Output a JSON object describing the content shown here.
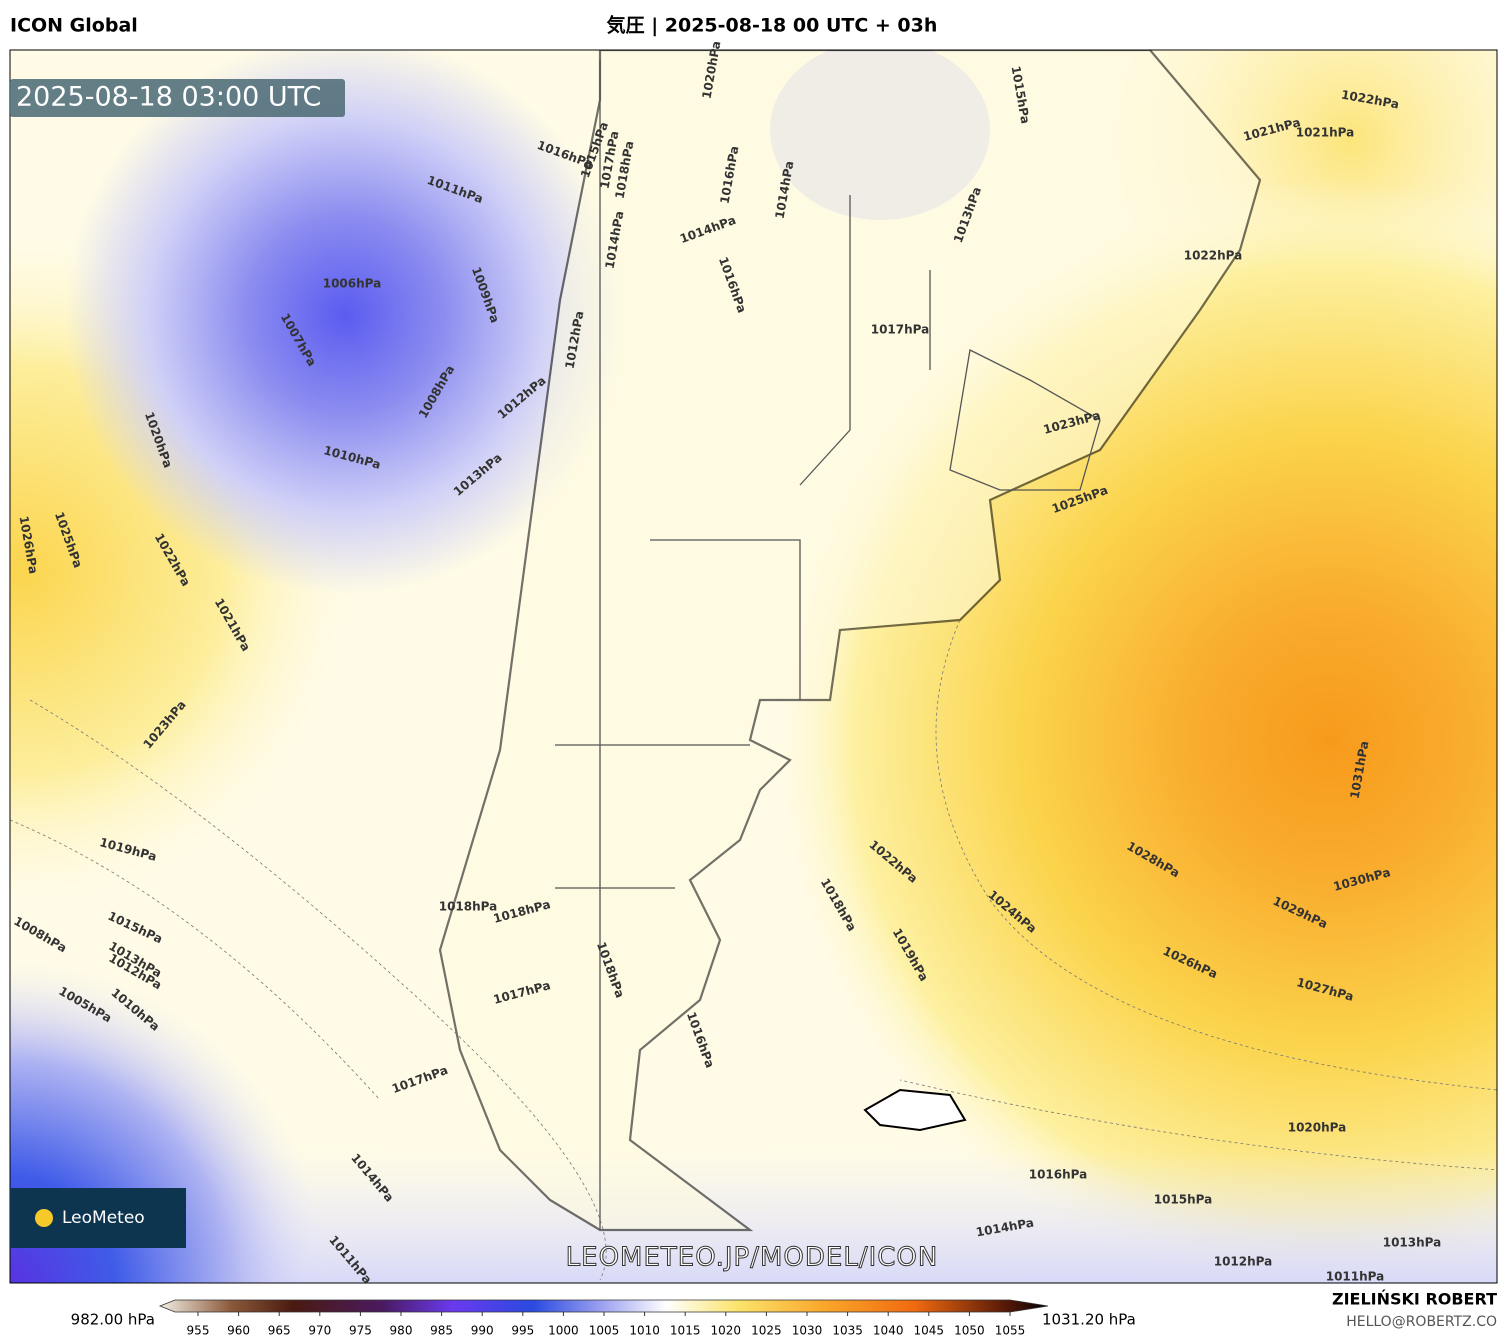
{
  "header": {
    "model": "ICON Global",
    "title": "気圧 | 2025-08-18 00 UTC + 03h"
  },
  "timestamp": "2025-08-18 03:00 UTC",
  "isobar_labels": [
    "1011hPa",
    "1006hPa",
    "1009hPa",
    "1007hPa",
    "1008hPa",
    "1012hPa",
    "1010hPa",
    "1013hPa",
    "1016hPa",
    "1015hPa",
    "1014hPa",
    "1012hPa",
    "1020hPa",
    "1025hPa",
    "1026hPa",
    "1022hPa",
    "1021hPa",
    "1023hPa",
    "1019hPa",
    "1015hPa",
    "1008hPa",
    "1013hPa",
    "1012hPa",
    "1005hPa",
    "1010hPa",
    "1017hPa",
    "1018hPa",
    "1016hPa",
    "1014hPa",
    "1014hPa",
    "1016hPa",
    "1017hPa",
    "1013hPa",
    "1015hPa",
    "1020hPa",
    "1022hPa",
    "1021hPa",
    "1021hPa",
    "1022hPa",
    "1023hPa",
    "1025hPa",
    "1031hPa",
    "1028hPa",
    "1030hPa",
    "1029hPa",
    "1026hPa",
    "1027hPa",
    "1022hPa",
    "1024hPa",
    "1018hPa",
    "1019hPa",
    "1018hPa",
    "1018hPa",
    "1018hPa",
    "1017hPa",
    "1016hPa",
    "1017hPa",
    "1014hPa",
    "1011hPa",
    "1020hPa",
    "1016hPa",
    "1015hPa",
    "1014hPa",
    "1013hPa",
    "1012hPa",
    "1011hPa"
  ],
  "watermark": "LEOMETEO.JP/MODEL/ICON",
  "logo": "LeoMeteo",
  "colorbar": {
    "min_label": "982.00 hPa",
    "max_label": "1031.20 hPa",
    "ticks": [
      955,
      960,
      965,
      970,
      975,
      980,
      985,
      990,
      995,
      1000,
      1005,
      1010,
      1015,
      1020,
      1025,
      1030,
      1035,
      1040,
      1045,
      1050,
      1055
    ]
  },
  "footer": {
    "author": "ZIELIŃSKI ROBERT",
    "email": "HELLO@ROBERTZ.CO"
  }
}
